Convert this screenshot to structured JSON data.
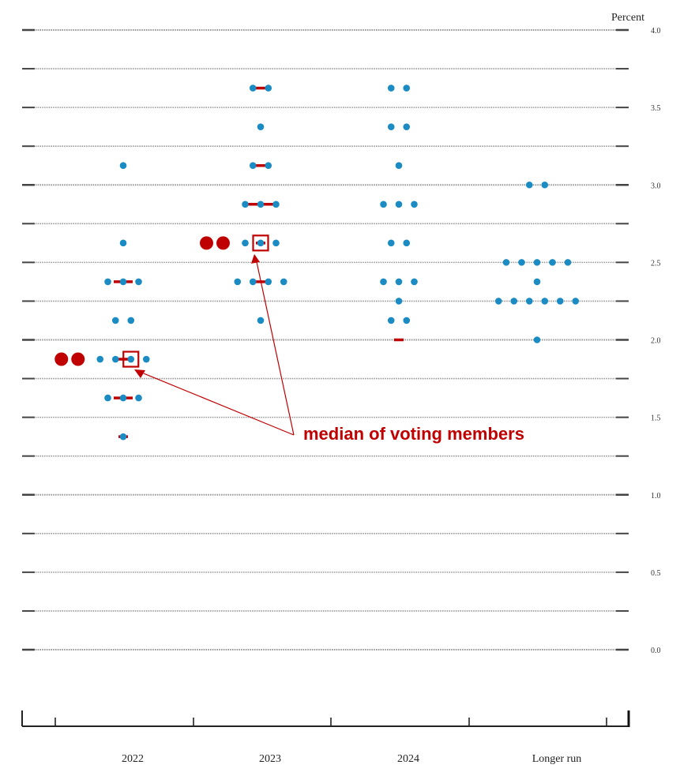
{
  "chart_data": {
    "type": "scatter",
    "subtype": "dot plot",
    "ylabel": "Percent",
    "ylim": [
      0,
      4
    ],
    "yticks": [
      "4.0",
      "3.5",
      "3.0",
      "2.5",
      "2.0",
      "1.5",
      "1.0",
      "0.5",
      "0.0"
    ],
    "categories": [
      "2022",
      "2023",
      "2024",
      "Longer run"
    ],
    "dot_color": "#1b8bc3",
    "highlight_color": "#c00000",
    "series": [
      {
        "category": "2022",
        "dots": [
          {
            "y": 3.125,
            "count": 1
          },
          {
            "y": 2.625,
            "count": 1
          },
          {
            "y": 2.375,
            "count": 3
          },
          {
            "y": 2.125,
            "count": 2
          },
          {
            "y": 1.875,
            "count": 4
          },
          {
            "y": 1.625,
            "count": 3
          },
          {
            "y": 1.375,
            "count": 1
          }
        ],
        "voting_dots": [
          {
            "y": 1.875,
            "count": 2
          }
        ],
        "voting_median": 1.875
      },
      {
        "category": "2023",
        "dots": [
          {
            "y": 3.625,
            "count": 2
          },
          {
            "y": 3.375,
            "count": 1
          },
          {
            "y": 3.125,
            "count": 2
          },
          {
            "y": 2.875,
            "count": 3
          },
          {
            "y": 2.625,
            "count": 3
          },
          {
            "y": 2.375,
            "count": 4
          },
          {
            "y": 2.125,
            "count": 1
          }
        ],
        "voting_dots": [
          {
            "y": 2.625,
            "count": 2
          }
        ],
        "voting_median": 2.625
      },
      {
        "category": "2024",
        "dots": [
          {
            "y": 3.625,
            "count": 2
          },
          {
            "y": 3.375,
            "count": 2
          },
          {
            "y": 3.125,
            "count": 1
          },
          {
            "y": 2.875,
            "count": 3
          },
          {
            "y": 2.625,
            "count": 2
          },
          {
            "y": 2.375,
            "count": 3
          },
          {
            "y": 2.25,
            "count": 1
          },
          {
            "y": 2.125,
            "count": 2
          }
        ]
      },
      {
        "category": "Longer run",
        "dots": [
          {
            "y": 3.0,
            "count": 2
          },
          {
            "y": 2.5,
            "count": 5
          },
          {
            "y": 2.375,
            "count": 1
          },
          {
            "y": 2.25,
            "count": 6
          },
          {
            "y": 2.0,
            "count": 1
          }
        ]
      }
    ],
    "red_marks": [
      {
        "category": "2022",
        "y": 2.375,
        "width": 2
      },
      {
        "category": "2022",
        "y": 1.875,
        "width": 2
      },
      {
        "category": "2022",
        "y": 1.625,
        "width": 2
      },
      {
        "category": "2022",
        "y": 1.375,
        "width": 1
      },
      {
        "category": "2023",
        "y": 3.625,
        "width": 1
      },
      {
        "category": "2023",
        "y": 3.125,
        "width": 1
      },
      {
        "category": "2023",
        "y": 2.875,
        "width": 3
      },
      {
        "category": "2023",
        "y": 2.625,
        "width": 1
      },
      {
        "category": "2023",
        "y": 2.375,
        "width": 1
      },
      {
        "category": "2024",
        "y": 2.0,
        "width": 1
      }
    ],
    "annotation": {
      "text": "median of voting members",
      "color": "#c00000"
    }
  }
}
